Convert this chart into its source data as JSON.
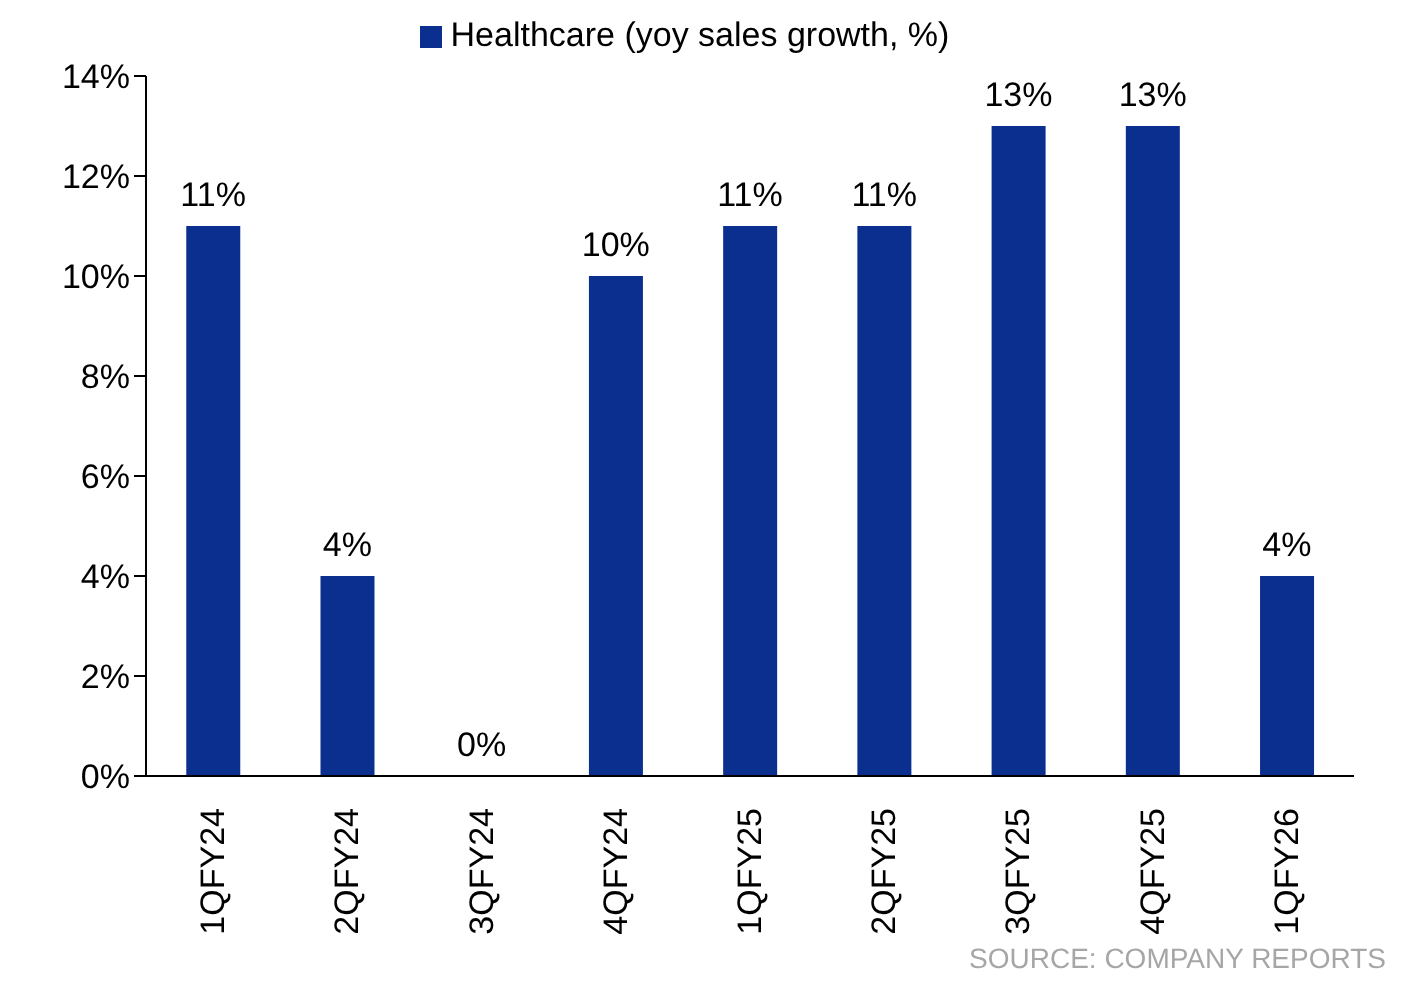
{
  "chart_data": {
    "type": "bar",
    "categories": [
      "1QFY24",
      "2QFY24",
      "3QFY24",
      "4QFY24",
      "1QFY25",
      "2QFY25",
      "3QFY25",
      "4QFY25",
      "1QFY26"
    ],
    "series": [
      {
        "name": "Healthcare (yoy sales growth, %)",
        "color": "#0b2f8f",
        "values": [
          11,
          4,
          0,
          10,
          11,
          11,
          13,
          13,
          4
        ],
        "value_labels": [
          "11%",
          "4%",
          "0%",
          "10%",
          "11%",
          "11%",
          "13%",
          "13%",
          "4%"
        ]
      }
    ],
    "ylim": [
      0,
      14
    ],
    "yticks": [
      {
        "value": 0,
        "label": "0%"
      },
      {
        "value": 2,
        "label": "2%"
      },
      {
        "value": 4,
        "label": "4%"
      },
      {
        "value": 6,
        "label": "6%"
      },
      {
        "value": 8,
        "label": "8%"
      },
      {
        "value": 10,
        "label": "10%"
      },
      {
        "value": 12,
        "label": "12%"
      },
      {
        "value": 14,
        "label": "14%"
      }
    ],
    "grid": false,
    "legend": "top",
    "annotations": [
      "SOURCE: COMPANY REPORTS"
    ]
  }
}
